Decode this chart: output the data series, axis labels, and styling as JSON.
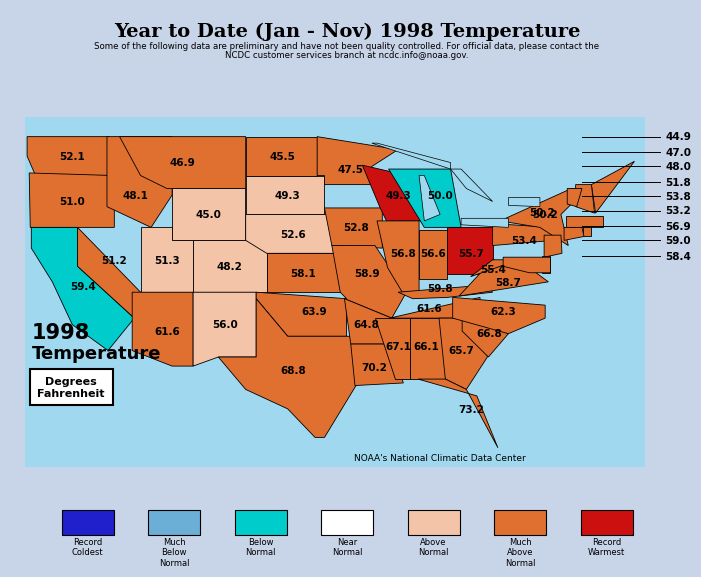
{
  "title": "Year to Date (Jan - Nov) 1998 Temperature",
  "subtitle1": "Some of the following data are preliminary and have not been quality controlled. For official data, please contact the",
  "subtitle2": "NCDC customer services branch at ncdc.info@noaa.gov.",
  "noaa_credit": "NOAA's National Climatic Data Center",
  "bg_color": "#c8d4e8",
  "legend_items": [
    {
      "label": "Record\nColdest",
      "color": "#2020cc"
    },
    {
      "label": "Much\nBelow\nNormal",
      "color": "#6baed6"
    },
    {
      "label": "Below\nNormal",
      "color": "#00cccc"
    },
    {
      "label": "Near\nNormal",
      "color": "#ffffff"
    },
    {
      "label": "Above\nNormal",
      "color": "#f4c4a8"
    },
    {
      "label": "Much\nAbove\nNormal",
      "color": "#e07030"
    },
    {
      "label": "Record\nWarmest",
      "color": "#cc1010"
    }
  ],
  "state_colors": {
    "WA": "#e07030",
    "OR": "#e07030",
    "CA": "#00cccc",
    "NV": "#e07030",
    "ID": "#e07030",
    "MT": "#e07030",
    "WY": "#f4c4a8",
    "UT": "#f4c4a8",
    "CO": "#f4c4a8",
    "AZ": "#e07030",
    "NM": "#f4c4a8",
    "ND": "#e07030",
    "SD": "#f4c4a8",
    "NE": "#f4c4a8",
    "KS": "#e07030",
    "OK": "#e07030",
    "TX": "#e07030",
    "MN": "#e07030",
    "IA": "#e07030",
    "MO": "#e07030",
    "AR": "#e07030",
    "LA": "#e07030",
    "WI": "#cc1010",
    "IL": "#e07030",
    "MI": "#00cccc",
    "IN": "#e07030",
    "OH": "#cc1010",
    "KY": "#e07030",
    "TN": "#e07030",
    "MS": "#e07030",
    "AL": "#e07030",
    "FL": "#e07030",
    "GA": "#e07030",
    "SC": "#e07030",
    "NC": "#e07030",
    "VA": "#e07030",
    "WV": "#e07030",
    "PA": "#e07030",
    "NY": "#e07030",
    "VT": "#e07030",
    "NH": "#e07030",
    "ME": "#e07030",
    "MA": "#e07030",
    "RI": "#e07030",
    "CT": "#e07030",
    "NJ": "#e07030",
    "DE": "#e07030",
    "MD": "#e07030"
  },
  "state_temps": {
    "WA": "52.1",
    "OR": "51.0",
    "CA": "59.4",
    "NV": "51.2",
    "ID": "48.1",
    "MT": "46.9",
    "WY": "45.0",
    "UT": "51.3",
    "CO": "48.2",
    "AZ": "61.6",
    "NM": "56.0",
    "ND": "45.5",
    "SD": "49.3",
    "NE": "52.6",
    "KS": "58.1",
    "OK": "63.9",
    "TX": "68.8",
    "MN": "47.5",
    "IA": "52.8",
    "MO": "58.9",
    "AR": "64.8",
    "LA": "70.2",
    "WI": "49.3",
    "IL": "56.8",
    "MI": "50.0",
    "IN": "56.6",
    "OH": "55.7",
    "KY": "59.8",
    "TN": "61.6",
    "MS": "67.1",
    "AL": "66.1",
    "FL": "73.2",
    "GA": "65.7",
    "SC": "66.8",
    "NC": "62.3",
    "VA": "58.7",
    "WV": "55.4",
    "PA": "53.4",
    "NY": "50.2",
    "VT": "47.0",
    "NH": "48.0",
    "ME": "44.9",
    "MA": "51.8",
    "RI": "53.8",
    "CT": "53.2",
    "NJ": "56.9",
    "DE": "59.0",
    "MD": "58.4"
  },
  "water_color": "#a0d8ef",
  "state_edge_color": "#000000"
}
